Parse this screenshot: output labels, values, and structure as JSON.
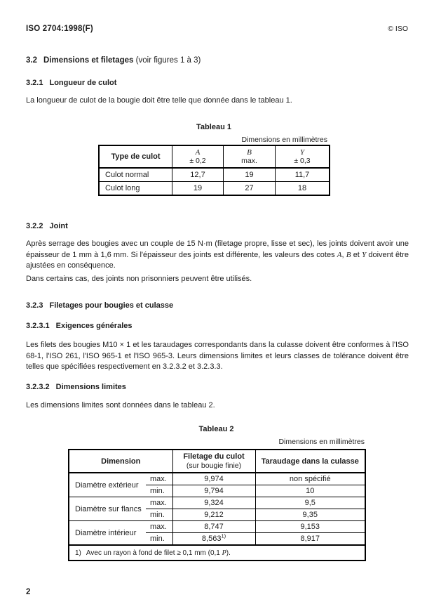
{
  "colors": {
    "ink": "#1c1c1c",
    "paper": "#ffffff"
  },
  "header": {
    "left": "ISO 2704:1998(F)",
    "right": "© ISO"
  },
  "footer": {
    "page_number": "2"
  },
  "sections": {
    "s32": {
      "number": "3.2",
      "title": "Dimensions et filetages",
      "suffix": "(voir figures 1 à 3)"
    },
    "s321": {
      "number": "3.2.1",
      "title": "Longueur de culot",
      "body": "La longueur de culot de la bougie doit être telle que donnée dans le tableau 1."
    },
    "s322": {
      "number": "3.2.2",
      "title": "Joint",
      "p1_pre": "Après serrage des bougies avec un couple de 15 N·m (filetage propre, lisse et sec), les joints doivent avoir une épaisseur de 1 mm à 1,6 mm. Si l'épaisseur des joints est différente, les valeurs des cotes ",
      "p1_sym_a": "A",
      "p1_sep1": ", ",
      "p1_sym_b": "B",
      "p1_sep2": " et ",
      "p1_sym_y": "Y",
      "p1_post": " doivent être ajustées en conséquence.",
      "p2": "Dans certains cas, des joints non prisonniers peuvent être utilisés."
    },
    "s323": {
      "number": "3.2.3",
      "title": "Filetages pour bougies et culasse"
    },
    "s3231": {
      "number": "3.2.3.1",
      "title": "Exigences générales",
      "body": "Les filets des bougies M10 × 1 et les taraudages correspondants dans la culasse doivent être conformes à l'ISO 68-1, l'ISO 261, l'ISO 965-1 et l'ISO 965-3. Leurs dimensions limites et leurs classes de tolérance doivent être telles que spécifiées respectivement en 3.2.3.2 et 3.2.3.3."
    },
    "s3232": {
      "number": "3.2.3.2",
      "title": "Dimensions limites",
      "body": "Les dimensions limites sont données dans le tableau 2."
    }
  },
  "table1": {
    "title": "Tableau 1",
    "units_note": "Dimensions en millimètres",
    "header": {
      "col0": "Type de culot",
      "cols": [
        {
          "symbol": "A",
          "tolerance": "± 0,2"
        },
        {
          "symbol": "B",
          "tolerance": "max."
        },
        {
          "symbol": "Y",
          "tolerance": "± 0,3"
        }
      ]
    },
    "rows": [
      {
        "label": "Culot normal",
        "values": [
          "12,7",
          "19",
          "11,7"
        ]
      },
      {
        "label": "Culot long",
        "values": [
          "19",
          "27",
          "18"
        ]
      }
    ]
  },
  "table2": {
    "title": "Tableau 2",
    "units_note": "Dimensions en millimètres",
    "header": {
      "dimension": "Dimension",
      "col1_line1": "Filetage du culot",
      "col1_line2": "(sur bougie finie)",
      "col2": "Taraudage dans la culasse"
    },
    "groups": [
      {
        "label": "Diamètre extérieur",
        "rows": [
          {
            "limit": "max.",
            "culot": "9,974",
            "culasse": "non spécifié"
          },
          {
            "limit": "min.",
            "culot": "9,794",
            "culasse": "10"
          }
        ]
      },
      {
        "label": "Diamètre sur flancs",
        "rows": [
          {
            "limit": "max.",
            "culot": "9,324",
            "culasse": "9,5"
          },
          {
            "limit": "min.",
            "culot": "9,212",
            "culasse": "9,35"
          }
        ]
      },
      {
        "label": "Diamètre intérieur",
        "rows": [
          {
            "limit": "max.",
            "culot": "8,747",
            "culasse": "9,153"
          },
          {
            "limit": "min.",
            "culot": "8,563",
            "culot_sup": "1)",
            "culasse": "8,917"
          }
        ]
      }
    ],
    "footnote": {
      "num": "1)",
      "text_pre": "Avec un rayon à fond de filet ≥ 0,1 mm (0,1 ",
      "symbol": "P",
      "text_post": ")."
    }
  }
}
